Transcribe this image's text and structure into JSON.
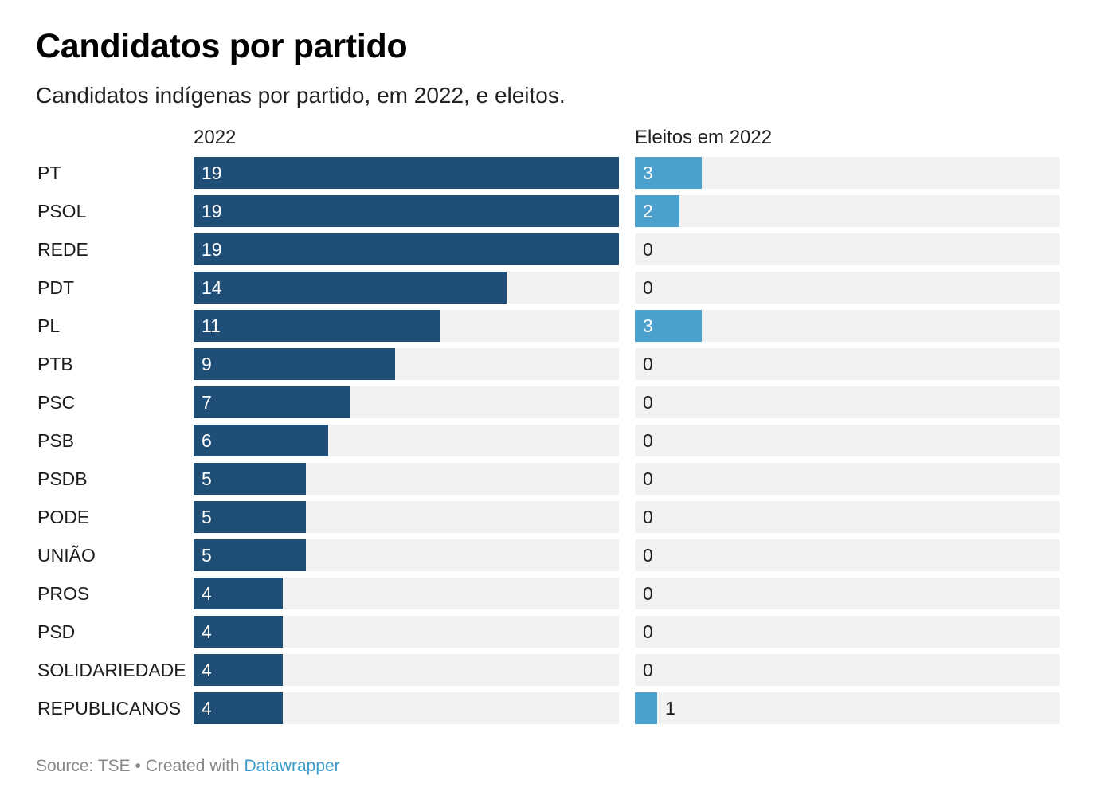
{
  "title": "Candidatos por partido",
  "subtitle": "Candidatos indígenas por partido, em 2022, e eleitos.",
  "footer": {
    "source": "Source: TSE",
    "separator": " • ",
    "created_with": "Created with ",
    "tool": "Datawrapper"
  },
  "colors": {
    "candidatos_bar": "#1f4e76",
    "eleitos_bar": "#4ba0cc",
    "track": "#f2f2f2",
    "link": "#3d9ccc"
  },
  "chart_data": {
    "type": "bar",
    "orientation": "horizontal",
    "categories": [
      "PT",
      "PSOL",
      "REDE",
      "PDT",
      "PL",
      "PTB",
      "PSC",
      "PSB",
      "PSDB",
      "PODE",
      "UNIÃO",
      "PROS",
      "PSD",
      "SOLIDARIEDADE",
      "REPUBLICANOS"
    ],
    "series": [
      {
        "name": "2022",
        "values": [
          19,
          19,
          19,
          14,
          11,
          9,
          7,
          6,
          5,
          5,
          5,
          4,
          4,
          4,
          4
        ],
        "xlim": [
          0,
          19
        ]
      },
      {
        "name": "Eleitos em 2022",
        "values": [
          3,
          2,
          0,
          0,
          3,
          0,
          0,
          0,
          0,
          0,
          0,
          0,
          0,
          0,
          1
        ],
        "xlim": [
          0,
          19
        ]
      }
    ],
    "title": "Candidatos por partido",
    "grid": false,
    "legend": "none"
  }
}
